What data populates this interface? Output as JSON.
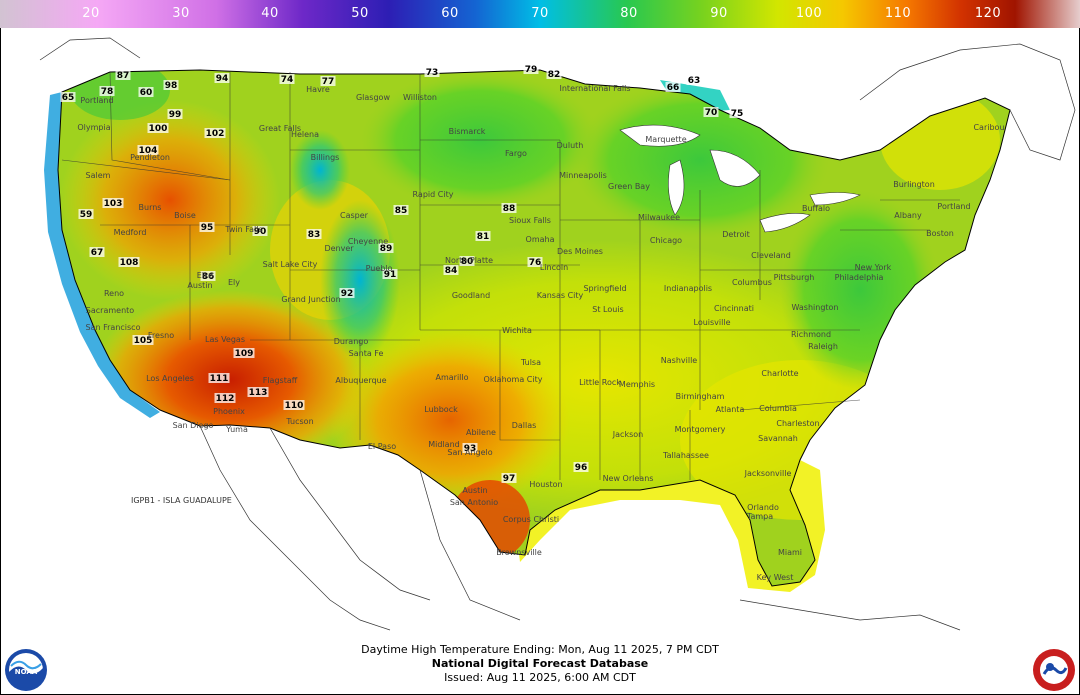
{
  "legend": {
    "ticks": [
      "20",
      "30",
      "40",
      "50",
      "60",
      "70",
      "80",
      "90",
      "100",
      "110",
      "120"
    ],
    "colors": [
      "#c8b4c8",
      "#f5a0f0",
      "#c050e0",
      "#5a2cd0",
      "#1a3cc8",
      "#00b4e6",
      "#3cd23c",
      "#96d21e",
      "#f5e600",
      "#f5a000",
      "#e64100",
      "#b41400",
      "#dcb4b4"
    ]
  },
  "map": {
    "label_guadalupe": "IGPB1 - ISLA GUADALUPE",
    "labels": [
      {
        "t": "87",
        "k": "v"
      },
      {
        "t": "65",
        "k": "v"
      },
      {
        "t": "78",
        "k": "v"
      },
      {
        "t": "60",
        "k": "v"
      },
      {
        "t": "98",
        "k": "v"
      },
      {
        "t": "94",
        "k": "v"
      },
      {
        "t": "74",
        "k": "v"
      },
      {
        "t": "77",
        "k": "v"
      },
      {
        "t": "73",
        "k": "v"
      },
      {
        "t": "79",
        "k": "v"
      },
      {
        "t": "82",
        "k": "v"
      },
      {
        "t": "100",
        "k": "v"
      },
      {
        "t": "99",
        "k": "v"
      },
      {
        "t": "102",
        "k": "v"
      },
      {
        "t": "104",
        "k": "v"
      },
      {
        "t": "103",
        "k": "v"
      },
      {
        "t": "108",
        "k": "v"
      },
      {
        "t": "105",
        "k": "v"
      },
      {
        "t": "109",
        "k": "v"
      },
      {
        "t": "111",
        "k": "v"
      },
      {
        "t": "112",
        "k": "v"
      },
      {
        "t": "113",
        "k": "v"
      },
      {
        "t": "110",
        "k": "v"
      },
      {
        "t": "86",
        "k": "v"
      },
      {
        "t": "90",
        "k": "v"
      },
      {
        "t": "95",
        "k": "v"
      },
      {
        "t": "92",
        "k": "v"
      },
      {
        "t": "91",
        "k": "v"
      },
      {
        "t": "89",
        "k": "v"
      },
      {
        "t": "85",
        "k": "v"
      },
      {
        "t": "84",
        "k": "v"
      },
      {
        "t": "88",
        "k": "v"
      },
      {
        "t": "81",
        "k": "v"
      },
      {
        "t": "83",
        "k": "v"
      },
      {
        "t": "80",
        "k": "v"
      },
      {
        "t": "76",
        "k": "v"
      },
      {
        "t": "70",
        "k": "v"
      },
      {
        "t": "75",
        "k": "v"
      },
      {
        "t": "63",
        "k": "v"
      },
      {
        "t": "66",
        "k": "v"
      },
      {
        "t": "96",
        "k": "v"
      },
      {
        "t": "97",
        "k": "v"
      },
      {
        "t": "93",
        "k": "v"
      },
      {
        "t": "59",
        "k": "v"
      },
      {
        "t": "67",
        "k": "v"
      },
      {
        "t": "Portland",
        "k": "c"
      },
      {
        "t": "Olympia",
        "k": "c"
      },
      {
        "t": "Pendleton",
        "k": "c"
      },
      {
        "t": "Salem",
        "k": "c"
      },
      {
        "t": "Medford",
        "k": "c"
      },
      {
        "t": "Burns",
        "k": "c"
      },
      {
        "t": "Boise",
        "k": "c"
      },
      {
        "t": "Twin Falls",
        "k": "c"
      },
      {
        "t": "Reno",
        "k": "c"
      },
      {
        "t": "Sacramento",
        "k": "c"
      },
      {
        "t": "San Francisco",
        "k": "c"
      },
      {
        "t": "Fresno",
        "k": "c"
      },
      {
        "t": "Los Angeles",
        "k": "c"
      },
      {
        "t": "San Diego",
        "k": "c"
      },
      {
        "t": "Las Vegas",
        "k": "c"
      },
      {
        "t": "Phoenix",
        "k": "c"
      },
      {
        "t": "Tucson",
        "k": "c"
      },
      {
        "t": "Yuma",
        "k": "c"
      },
      {
        "t": "Flagstaff",
        "k": "c"
      },
      {
        "t": "Salt Lake City",
        "k": "c"
      },
      {
        "t": "Ely",
        "k": "c"
      },
      {
        "t": "Elko",
        "k": "c"
      },
      {
        "t": "Austin",
        "k": "c"
      },
      {
        "t": "Great Falls",
        "k": "c"
      },
      {
        "t": "Helena",
        "k": "c"
      },
      {
        "t": "Billings",
        "k": "c"
      },
      {
        "t": "Havre",
        "k": "c"
      },
      {
        "t": "Glasgow",
        "k": "c"
      },
      {
        "t": "Williston",
        "k": "c"
      },
      {
        "t": "Bismarck",
        "k": "c"
      },
      {
        "t": "Fargo",
        "k": "c"
      },
      {
        "t": "Duluth",
        "k": "c"
      },
      {
        "t": "Minneapolis",
        "k": "c"
      },
      {
        "t": "Sioux Falls",
        "k": "c"
      },
      {
        "t": "Rapid City",
        "k": "c"
      },
      {
        "t": "Casper",
        "k": "c"
      },
      {
        "t": "Cheyenne",
        "k": "c"
      },
      {
        "t": "Denver",
        "k": "c"
      },
      {
        "t": "Grand Junction",
        "k": "c"
      },
      {
        "t": "Pueblo",
        "k": "c"
      },
      {
        "t": "Durango",
        "k": "c"
      },
      {
        "t": "Albuquerque",
        "k": "c"
      },
      {
        "t": "Santa Fe",
        "k": "c"
      },
      {
        "t": "El Paso",
        "k": "c"
      },
      {
        "t": "Omaha",
        "k": "c"
      },
      {
        "t": "Lincoln",
        "k": "c"
      },
      {
        "t": "North Platte",
        "k": "c"
      },
      {
        "t": "Goodland",
        "k": "c"
      },
      {
        "t": "Wichita",
        "k": "c"
      },
      {
        "t": "Kansas City",
        "k": "c"
      },
      {
        "t": "Tulsa",
        "k": "c"
      },
      {
        "t": "Oklahoma City",
        "k": "c"
      },
      {
        "t": "Amarillo",
        "k": "c"
      },
      {
        "t": "Lubbock",
        "k": "c"
      },
      {
        "t": "Midland",
        "k": "c"
      },
      {
        "t": "Abilene",
        "k": "c"
      },
      {
        "t": "Dallas",
        "k": "c"
      },
      {
        "t": "San Angelo",
        "k": "c"
      },
      {
        "t": "Austin",
        "k": "c"
      },
      {
        "t": "San Antonio",
        "k": "c"
      },
      {
        "t": "Houston",
        "k": "c"
      },
      {
        "t": "Corpus Christi",
        "k": "c"
      },
      {
        "t": "Brownsville",
        "k": "c"
      },
      {
        "t": "Des Moines",
        "k": "c"
      },
      {
        "t": "Chicago",
        "k": "c"
      },
      {
        "t": "Milwaukee",
        "k": "c"
      },
      {
        "t": "Green Bay",
        "k": "c"
      },
      {
        "t": "Detroit",
        "k": "c"
      },
      {
        "t": "Indianapolis",
        "k": "c"
      },
      {
        "t": "St Louis",
        "k": "c"
      },
      {
        "t": "Springfield",
        "k": "c"
      },
      {
        "t": "Memphis",
        "k": "c"
      },
      {
        "t": "Nashville",
        "k": "c"
      },
      {
        "t": "Little Rock",
        "k": "c"
      },
      {
        "t": "Jackson",
        "k": "c"
      },
      {
        "t": "New Orleans",
        "k": "c"
      },
      {
        "t": "Atlanta",
        "k": "c"
      },
      {
        "t": "Birmingham",
        "k": "c"
      },
      {
        "t": "Montgomery",
        "k": "c"
      },
      {
        "t": "Tallahassee",
        "k": "c"
      },
      {
        "t": "Jacksonville",
        "k": "c"
      },
      {
        "t": "Orlando",
        "k": "c"
      },
      {
        "t": "Tampa",
        "k": "c"
      },
      {
        "t": "Miami",
        "k": "c"
      },
      {
        "t": "Key West",
        "k": "c"
      },
      {
        "t": "Savannah",
        "k": "c"
      },
      {
        "t": "Charleston",
        "k": "c"
      },
      {
        "t": "Columbia",
        "k": "c"
      },
      {
        "t": "Charlotte",
        "k": "c"
      },
      {
        "t": "Raleigh",
        "k": "c"
      },
      {
        "t": "Richmond",
        "k": "c"
      },
      {
        "t": "Washington",
        "k": "c"
      },
      {
        "t": "Philadelphia",
        "k": "c"
      },
      {
        "t": "New York",
        "k": "c"
      },
      {
        "t": "Boston",
        "k": "c"
      },
      {
        "t": "Albany",
        "k": "c"
      },
      {
        "t": "Burlington",
        "k": "c"
      },
      {
        "t": "Portland",
        "k": "c"
      },
      {
        "t": "Caribou",
        "k": "c"
      },
      {
        "t": "Buffalo",
        "k": "c"
      },
      {
        "t": "Pittsburgh",
        "k": "c"
      },
      {
        "t": "Cleveland",
        "k": "c"
      },
      {
        "t": "Columbus",
        "k": "c"
      },
      {
        "t": "Cincinnati",
        "k": "c"
      },
      {
        "t": "Louisville",
        "k": "c"
      },
      {
        "t": "Marquette",
        "k": "c"
      },
      {
        "t": "International Falls",
        "k": "c"
      }
    ]
  },
  "footer": {
    "line1": "Daytime High Temperature Ending: Mon, Aug 11 2025, 7 PM CDT",
    "line2": "National Digital Forecast Database",
    "line3": "Issued: Aug 11 2025, 6:00 AM CDT"
  }
}
